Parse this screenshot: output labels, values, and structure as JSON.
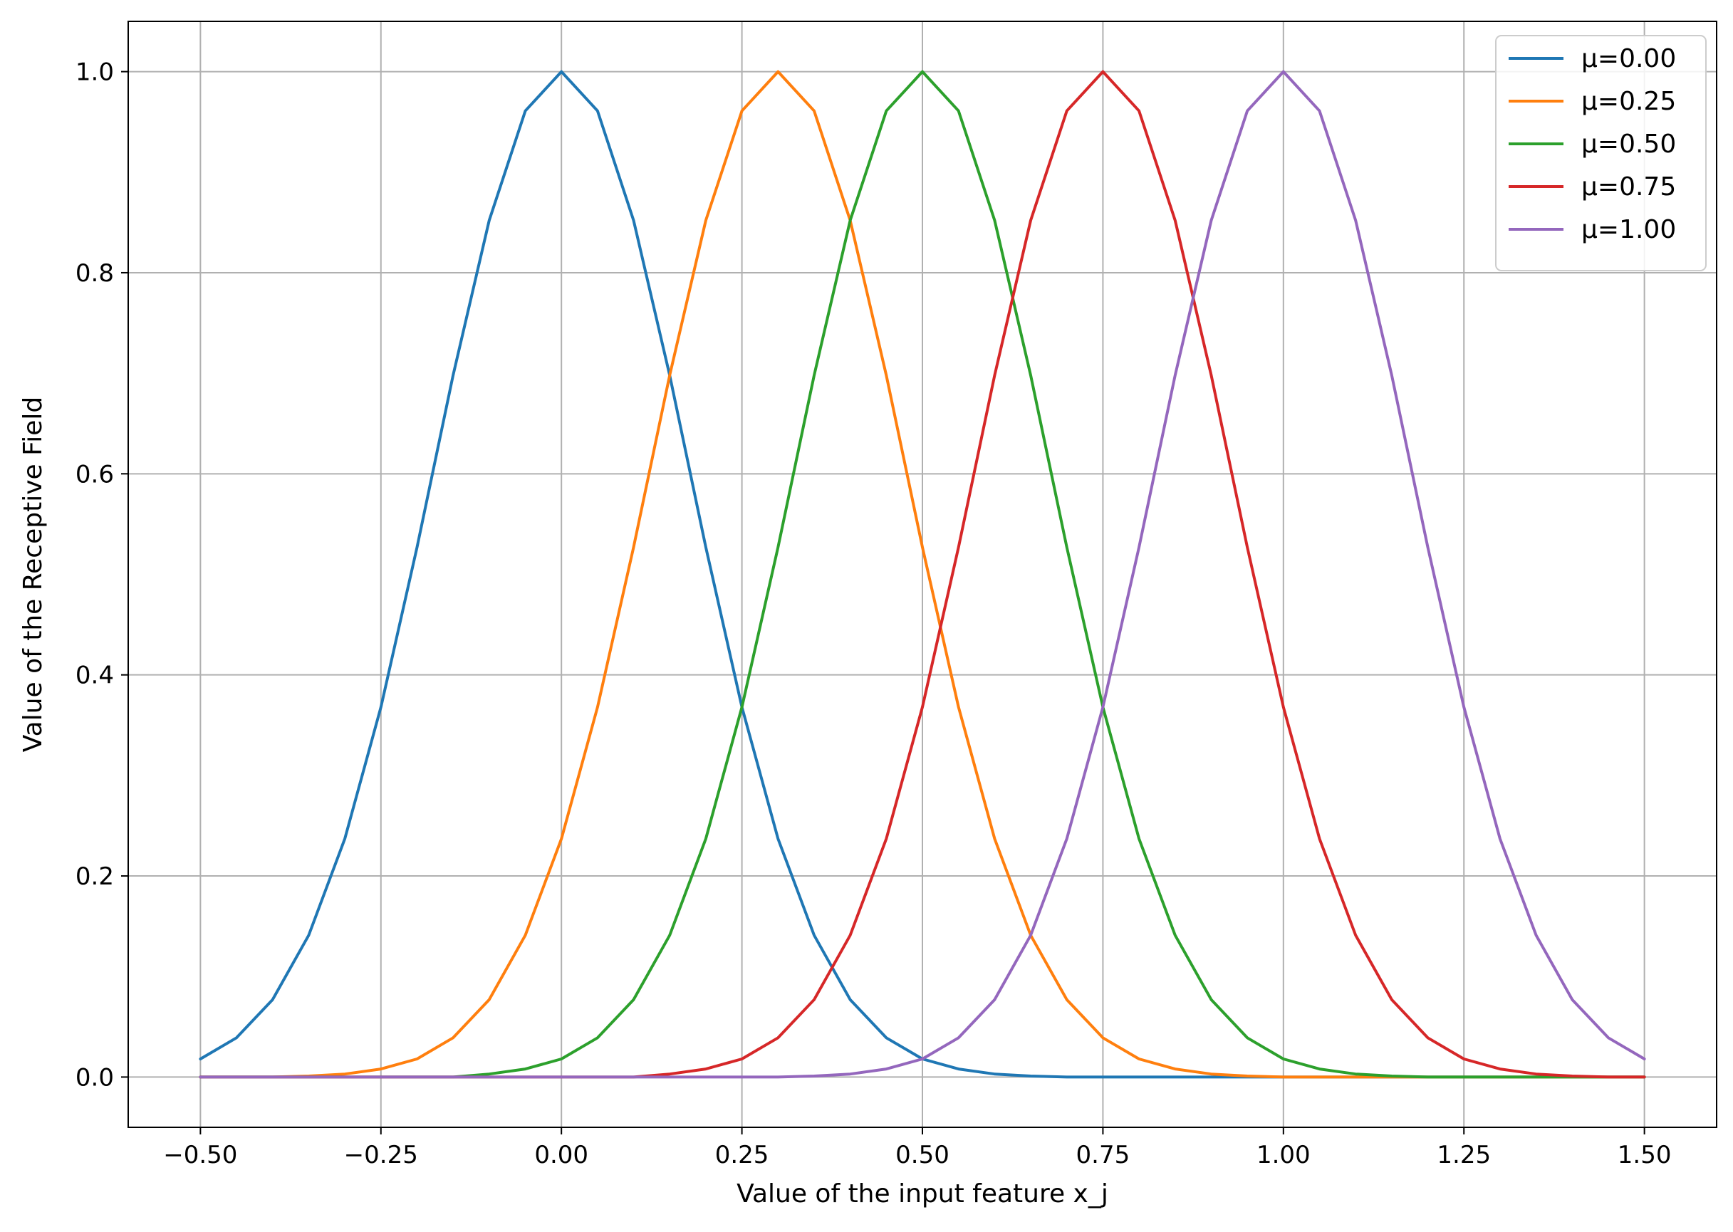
{
  "chart_data": {
    "type": "line",
    "title": "",
    "xlabel": "Value of the input feature x_j",
    "ylabel": "Value of the Receptive Field",
    "xlim": [
      -0.6,
      1.6
    ],
    "ylim": [
      -0.05,
      1.05
    ],
    "xticks": [
      -0.5,
      -0.25,
      0.0,
      0.25,
      0.5,
      0.75,
      1.0,
      1.25,
      1.5
    ],
    "xtick_labels": [
      "−0.50",
      "−0.25",
      "0.00",
      "0.25",
      "0.50",
      "0.75",
      "1.00",
      "1.25",
      "1.50"
    ],
    "yticks": [
      0.0,
      0.2,
      0.4,
      0.6,
      0.8,
      1.0
    ],
    "ytick_labels": [
      "0.0",
      "0.2",
      "0.4",
      "0.6",
      "0.8",
      "1.0"
    ],
    "grid": true,
    "legend_position": "top-right",
    "series": [
      {
        "name": "μ=0.00",
        "color": "#1f77b4",
        "x": [
          -0.5,
          -0.45,
          -0.4,
          -0.35,
          -0.3,
          -0.25,
          -0.2,
          -0.15,
          -0.1,
          -0.05,
          0.0,
          0.05,
          0.1,
          0.15,
          0.2,
          0.25,
          0.3,
          0.35,
          0.4,
          0.45,
          0.5,
          0.55,
          0.6,
          0.65,
          0.7,
          0.75,
          0.8,
          0.85,
          0.9,
          0.95,
          1.0,
          1.05,
          1.1,
          1.15,
          1.2,
          1.25,
          1.3,
          1.35,
          1.4,
          1.45,
          1.5
        ],
        "y": [
          0.018,
          0.039,
          0.077,
          0.141,
          0.237,
          0.368,
          0.527,
          0.698,
          0.852,
          0.961,
          1.0,
          0.961,
          0.852,
          0.698,
          0.527,
          0.368,
          0.237,
          0.141,
          0.077,
          0.039,
          0.018,
          0.008,
          0.003,
          0.001,
          0.0,
          0.0,
          0.0,
          0.0,
          0.0,
          0.0,
          0.0,
          0.0,
          0.0,
          0.0,
          0.0,
          0.0,
          0.0,
          0.0,
          0.0,
          0.0,
          0.0
        ]
      },
      {
        "name": "μ=0.25",
        "color": "#ff7f0e",
        "x": [
          -0.5,
          -0.45,
          -0.4,
          -0.35,
          -0.3,
          -0.25,
          -0.2,
          -0.15,
          -0.1,
          -0.05,
          0.0,
          0.05,
          0.1,
          0.15,
          0.2,
          0.25,
          0.3,
          0.35,
          0.4,
          0.45,
          0.5,
          0.55,
          0.6,
          0.65,
          0.7,
          0.75,
          0.8,
          0.85,
          0.9,
          0.95,
          1.0,
          1.05,
          1.1,
          1.15,
          1.2,
          1.25,
          1.3,
          1.35,
          1.4,
          1.45,
          1.5
        ],
        "y": [
          0.0,
          0.0,
          0.0,
          0.001,
          0.003,
          0.008,
          0.018,
          0.039,
          0.077,
          0.141,
          0.237,
          0.368,
          0.527,
          0.698,
          0.852,
          0.961,
          1.0,
          0.961,
          0.852,
          0.698,
          0.527,
          0.368,
          0.237,
          0.141,
          0.077,
          0.039,
          0.018,
          0.008,
          0.003,
          0.001,
          0.0,
          0.0,
          0.0,
          0.0,
          0.0,
          0.0,
          0.0,
          0.0,
          0.0,
          0.0,
          0.0
        ]
      },
      {
        "name": "μ=0.50",
        "color": "#2ca02c",
        "x": [
          -0.5,
          -0.45,
          -0.4,
          -0.35,
          -0.3,
          -0.25,
          -0.2,
          -0.15,
          -0.1,
          -0.05,
          0.0,
          0.05,
          0.1,
          0.15,
          0.2,
          0.25,
          0.3,
          0.35,
          0.4,
          0.45,
          0.5,
          0.55,
          0.6,
          0.65,
          0.7,
          0.75,
          0.8,
          0.85,
          0.9,
          0.95,
          1.0,
          1.05,
          1.1,
          1.15,
          1.2,
          1.25,
          1.3,
          1.35,
          1.4,
          1.45,
          1.5
        ],
        "y": [
          0.0,
          0.0,
          0.0,
          0.0,
          0.0,
          0.0,
          0.0,
          0.0,
          0.003,
          0.008,
          0.018,
          0.039,
          0.077,
          0.141,
          0.237,
          0.368,
          0.527,
          0.698,
          0.852,
          0.961,
          1.0,
          0.961,
          0.852,
          0.698,
          0.527,
          0.368,
          0.237,
          0.141,
          0.077,
          0.039,
          0.018,
          0.008,
          0.003,
          0.001,
          0.0,
          0.0,
          0.0,
          0.0,
          0.0,
          0.0,
          0.0
        ]
      },
      {
        "name": "μ=0.75",
        "color": "#d62728",
        "x": [
          -0.5,
          -0.45,
          -0.4,
          -0.35,
          -0.3,
          -0.25,
          -0.2,
          -0.15,
          -0.1,
          -0.05,
          0.0,
          0.05,
          0.1,
          0.15,
          0.2,
          0.25,
          0.3,
          0.35,
          0.4,
          0.45,
          0.5,
          0.55,
          0.6,
          0.65,
          0.7,
          0.75,
          0.8,
          0.85,
          0.9,
          0.95,
          1.0,
          1.05,
          1.1,
          1.15,
          1.2,
          1.25,
          1.3,
          1.35,
          1.4,
          1.45,
          1.5
        ],
        "y": [
          0.0,
          0.0,
          0.0,
          0.0,
          0.0,
          0.0,
          0.0,
          0.0,
          0.0,
          0.0,
          0.0,
          0.0,
          0.0,
          0.003,
          0.008,
          0.018,
          0.039,
          0.077,
          0.141,
          0.237,
          0.368,
          0.527,
          0.698,
          0.852,
          0.961,
          1.0,
          0.961,
          0.852,
          0.698,
          0.527,
          0.368,
          0.237,
          0.141,
          0.077,
          0.039,
          0.018,
          0.008,
          0.003,
          0.001,
          0.0,
          0.0
        ]
      },
      {
        "name": "μ=1.00",
        "color": "#9467bd",
        "x": [
          -0.5,
          -0.45,
          -0.4,
          -0.35,
          -0.3,
          -0.25,
          -0.2,
          -0.15,
          -0.1,
          -0.05,
          0.0,
          0.05,
          0.1,
          0.15,
          0.2,
          0.25,
          0.3,
          0.35,
          0.4,
          0.45,
          0.5,
          0.55,
          0.6,
          0.65,
          0.7,
          0.75,
          0.8,
          0.85,
          0.9,
          0.95,
          1.0,
          1.05,
          1.1,
          1.15,
          1.2,
          1.25,
          1.3,
          1.35,
          1.4,
          1.45,
          1.5
        ],
        "y": [
          0.0,
          0.0,
          0.0,
          0.0,
          0.0,
          0.0,
          0.0,
          0.0,
          0.0,
          0.0,
          0.0,
          0.0,
          0.0,
          0.0,
          0.0,
          0.0,
          0.0,
          0.001,
          0.003,
          0.008,
          0.018,
          0.039,
          0.077,
          0.141,
          0.237,
          0.368,
          0.527,
          0.698,
          0.852,
          0.961,
          1.0,
          0.961,
          0.852,
          0.698,
          0.527,
          0.368,
          0.237,
          0.141,
          0.077,
          0.039,
          0.018
        ]
      }
    ]
  }
}
